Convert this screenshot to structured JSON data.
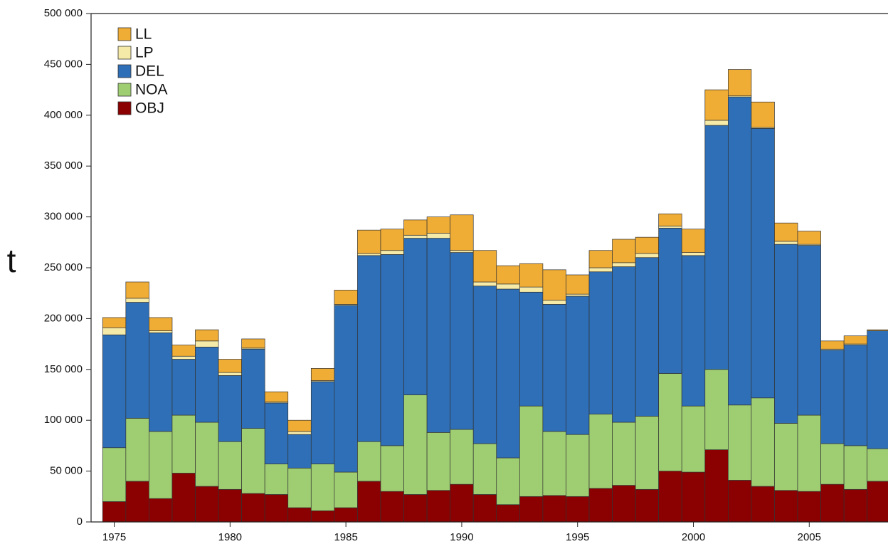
{
  "chart_data": {
    "type": "stacked_bar",
    "ylabel": "t",
    "x": [
      1975,
      1976,
      1977,
      1978,
      1979,
      1980,
      1981,
      1982,
      1983,
      1984,
      1985,
      1986,
      1987,
      1988,
      1989,
      1990,
      1991,
      1992,
      1993,
      1994,
      1995,
      1996,
      1997,
      1998,
      1999,
      2000,
      2001,
      2002,
      2003,
      2004,
      2005,
      2006,
      2007,
      2008
    ],
    "series": [
      {
        "name": "LL",
        "color": "#f0ad36",
        "values": [
          10000,
          16000,
          13000,
          11000,
          11000,
          13000,
          9000,
          10000,
          11000,
          12000,
          14000,
          23000,
          21000,
          15000,
          16000,
          35000,
          31000,
          18000,
          23000,
          30000,
          19000,
          17000,
          23000,
          16000,
          12000,
          23000,
          30000,
          26000,
          25000,
          18000,
          13000,
          8000,
          8000,
          1000
        ]
      },
      {
        "name": "LP",
        "color": "#f5eaa8",
        "values": [
          7000,
          4000,
          2000,
          3000,
          6000,
          3000,
          1000,
          1000,
          3000,
          1000,
          1000,
          2000,
          4000,
          3000,
          5000,
          2000,
          4000,
          5000,
          5000,
          4000,
          2000,
          4000,
          4000,
          4000,
          2000,
          3000,
          5000,
          1000,
          1000,
          3000,
          1000,
          1000,
          1000,
          0
        ]
      },
      {
        "name": "DEL",
        "color": "#2e6fb7",
        "values": [
          111000,
          114000,
          97000,
          55000,
          74000,
          65000,
          78000,
          60000,
          33000,
          81000,
          164000,
          183000,
          188000,
          154000,
          191000,
          174000,
          155000,
          166000,
          112000,
          125000,
          136000,
          140000,
          153000,
          156000,
          143000,
          148000,
          240000,
          303000,
          265000,
          176000,
          167000,
          92000,
          99000,
          116000
        ]
      },
      {
        "name": "NOA",
        "color": "#9fce72",
        "values": [
          53000,
          62000,
          66000,
          57000,
          63000,
          47000,
          64000,
          30000,
          39000,
          46000,
          35000,
          39000,
          45000,
          98000,
          57000,
          54000,
          50000,
          46000,
          89000,
          63000,
          61000,
          73000,
          62000,
          72000,
          96000,
          65000,
          79000,
          74000,
          87000,
          66000,
          75000,
          40000,
          43000,
          32000
        ]
      },
      {
        "name": "OBJ",
        "color": "#8b0000",
        "values": [
          20000,
          40000,
          23000,
          48000,
          35000,
          32000,
          28000,
          27000,
          14000,
          11000,
          14000,
          40000,
          30000,
          27000,
          31000,
          37000,
          27000,
          17000,
          25000,
          26000,
          25000,
          33000,
          36000,
          32000,
          50000,
          49000,
          71000,
          41000,
          35000,
          31000,
          30000,
          37000,
          32000,
          40000
        ]
      }
    ],
    "xlim": [
      1974.0,
      2008.4
    ],
    "xticks": [
      1975,
      1980,
      1985,
      1990,
      1995,
      2000,
      2005
    ],
    "ylim": [
      0,
      500000
    ],
    "yticks": [
      0,
      {
        "value": 50000,
        "label": "50 000"
      },
      {
        "value": 100000,
        "label": "100 000"
      },
      {
        "value": 150000,
        "label": "150 000"
      },
      {
        "value": 200000,
        "label": "200 000"
      },
      {
        "value": 250000,
        "label": "250 000"
      },
      {
        "value": 300000,
        "label": "300 000"
      },
      {
        "value": 350000,
        "label": "350 000"
      },
      {
        "value": 400000,
        "label": "400 000"
      },
      {
        "value": 450000,
        "label": "450 000"
      },
      {
        "value": 500000,
        "label": "500 000"
      }
    ],
    "legend": "upper left"
  }
}
